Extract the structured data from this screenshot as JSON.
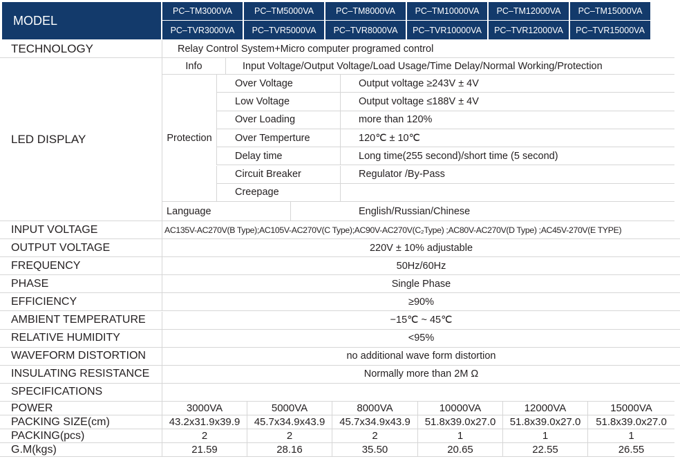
{
  "header": {
    "model_label": "MODEL",
    "models_tm": [
      "PC–TM3000VA",
      "PC–TM5000VA",
      "PC–TM8000VA",
      "PC–TM10000VA",
      "PC–TM12000VA",
      "PC–TM15000VA"
    ],
    "models_tvr": [
      "PC–TVR3000VA",
      "PC–TVR5000VA",
      "PC–TVR8000VA",
      "PC–TVR10000VA",
      "PC–TVR12000VA",
      "PC–TVR15000VA"
    ]
  },
  "technology": {
    "label": "TECHNOLOGY",
    "value": "Relay Control System+Micro computer programed control"
  },
  "led": {
    "label": "LED DISPLAY",
    "info_label": "Info",
    "info_value": "Input Voltage/Output Voltage/Load Usage/Time Delay/Normal Working/Protection",
    "protection_label": "Protection",
    "protection": [
      {
        "item": "Over Voltage",
        "value": "Output voltage ≥243V ± 4V"
      },
      {
        "item": "Low Voltage",
        "value": "Output voltage ≤188V ± 4V"
      },
      {
        "item": "Over Loading",
        "value": "more than 120%"
      },
      {
        "item": "Over Temperture",
        "value": "120℃ ± 10℃"
      },
      {
        "item": "Delay time",
        "value": "Long time(255 second)/short time (5 second)"
      },
      {
        "item": "Circuit Breaker",
        "value": "Regulator /By-Pass"
      },
      {
        "item": "Creepage",
        "value": ""
      }
    ],
    "language_label": "Language",
    "language_value": "English/Russian/Chinese"
  },
  "specs": [
    {
      "label": "INPUT VOLTAGE",
      "value": "AC135V-AC270V(B Type);AC105V-AC270V(C Type);AC90V-AC270V(C₂Type) ;AC80V-AC270V(D Type) ;AC45V-270V(E TYPE)"
    },
    {
      "label": "OUTPUT VOLTAGE",
      "value": "220V ± 10%   adjustable"
    },
    {
      "label": "FREQUENCY",
      "value": "50Hz/60Hz"
    },
    {
      "label": "PHASE",
      "value": "Single Phase"
    },
    {
      "label": "EFFICIENCY",
      "value": "≥90%"
    },
    {
      "label": "AMBIENT TEMPERATURE",
      "value": "−15℃ ~ 45℃"
    },
    {
      "label": "RELATIVE HUMIDITY",
      "value": "<95%"
    },
    {
      "label": "WAVEFORM DISTORTION",
      "value": "no additional wave form distortion"
    },
    {
      "label": "INSULATING RESISTANCE",
      "value": "Normally more than 2M Ω"
    },
    {
      "label": "SPECIFICATIONS",
      "value": ""
    }
  ],
  "table": [
    {
      "label": "POWER",
      "values": [
        "3000VA",
        "5000VA",
        "8000VA",
        "10000VA",
        "12000VA",
        "15000VA"
      ]
    },
    {
      "label": "PACKING SIZE(cm)",
      "values": [
        "43.2x31.9x39.9",
        "45.7x34.9x43.9",
        "45.7x34.9x43.9",
        "51.8x39.0x27.0",
        "51.8x39.0x27.0",
        "51.8x39.0x27.0"
      ]
    },
    {
      "label": "PACKING(pcs)",
      "values": [
        "2",
        "2",
        "2",
        "1",
        "1",
        "1"
      ]
    },
    {
      "label": "G.M(kgs)",
      "values": [
        "21.59",
        "28.16",
        "35.50",
        "20.65",
        "22.55",
        "26.55"
      ]
    }
  ]
}
